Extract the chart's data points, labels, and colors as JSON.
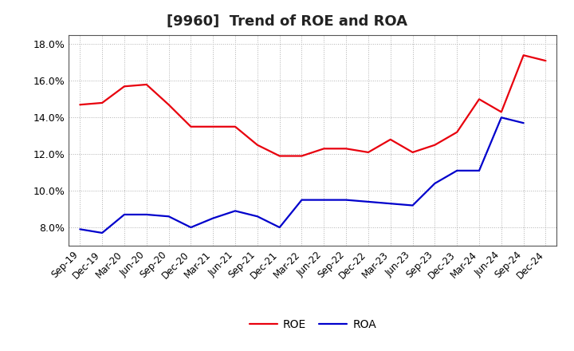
{
  "title": "[9960]  Trend of ROE and ROA",
  "x_labels": [
    "Sep-19",
    "Dec-19",
    "Mar-20",
    "Jun-20",
    "Sep-20",
    "Dec-20",
    "Mar-21",
    "Jun-21",
    "Sep-21",
    "Dec-21",
    "Mar-22",
    "Jun-22",
    "Sep-22",
    "Dec-22",
    "Mar-23",
    "Jun-23",
    "Sep-23",
    "Dec-23",
    "Mar-24",
    "Jun-24",
    "Sep-24",
    "Dec-24"
  ],
  "roe": [
    14.7,
    14.8,
    15.7,
    15.8,
    14.7,
    13.5,
    13.5,
    13.5,
    12.5,
    11.9,
    11.9,
    12.3,
    12.3,
    12.1,
    12.8,
    12.1,
    12.5,
    13.2,
    15.0,
    14.3,
    17.4,
    17.1
  ],
  "roa": [
    7.9,
    7.7,
    8.7,
    8.7,
    8.6,
    8.0,
    8.5,
    8.9,
    8.6,
    8.0,
    9.5,
    9.5,
    9.5,
    9.4,
    9.3,
    9.2,
    10.4,
    11.1,
    11.1,
    14.0,
    13.7,
    null
  ],
  "roe_color": "#e8000d",
  "roa_color": "#0000cc",
  "ylim": [
    7.0,
    18.5
  ],
  "yticks": [
    8.0,
    10.0,
    12.0,
    14.0,
    16.0,
    18.0
  ],
  "background_color": "#ffffff",
  "grid_color": "#b0b0b0",
  "title_fontsize": 13,
  "axis_fontsize": 8.5,
  "legend_fontsize": 10,
  "line_width": 1.6
}
